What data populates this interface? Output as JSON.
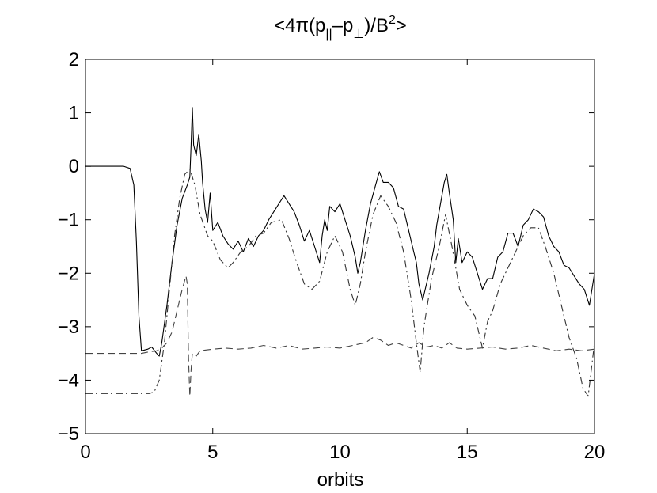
{
  "chart_data": {
    "type": "line",
    "title": "<4π(p||–p⊥)/B2>",
    "xlabel": "orbits",
    "ylabel": "",
    "xlim": [
      0,
      20
    ],
    "ylim": [
      -5,
      2
    ],
    "xticks": [
      "0",
      "5",
      "10",
      "15",
      "20"
    ],
    "yticks": [
      "2",
      "1",
      "0",
      "−1",
      "−2",
      "−3",
      "−4",
      "−5"
    ],
    "grid": false,
    "legend": "none",
    "series": [
      {
        "style": "solid",
        "color": "#000000",
        "points": [
          [
            0,
            0
          ],
          [
            1.5,
            0
          ],
          [
            1.75,
            -0.04
          ],
          [
            1.9,
            -0.35
          ],
          [
            2.0,
            -1.4
          ],
          [
            2.1,
            -2.8
          ],
          [
            2.2,
            -3.45
          ],
          [
            2.45,
            -3.42
          ],
          [
            2.6,
            -3.38
          ],
          [
            2.8,
            -3.5
          ],
          [
            2.9,
            -3.55
          ],
          [
            3.0,
            -3.3
          ],
          [
            3.2,
            -2.6
          ],
          [
            3.4,
            -1.8
          ],
          [
            3.6,
            -1.1
          ],
          [
            3.8,
            -0.6
          ],
          [
            4.0,
            -0.35
          ],
          [
            4.1,
            -0.2
          ],
          [
            4.15,
            0.4
          ],
          [
            4.2,
            1.1
          ],
          [
            4.25,
            0.4
          ],
          [
            4.35,
            0.2
          ],
          [
            4.45,
            0.6
          ],
          [
            4.55,
            0.1
          ],
          [
            4.6,
            -0.3
          ],
          [
            4.7,
            -0.8
          ],
          [
            4.8,
            -1.05
          ],
          [
            4.9,
            -0.5
          ],
          [
            5.0,
            -1.2
          ],
          [
            5.2,
            -1.05
          ],
          [
            5.4,
            -1.3
          ],
          [
            5.6,
            -1.45
          ],
          [
            5.8,
            -1.55
          ],
          [
            6.0,
            -1.4
          ],
          [
            6.2,
            -1.6
          ],
          [
            6.4,
            -1.35
          ],
          [
            6.6,
            -1.5
          ],
          [
            6.8,
            -1.3
          ],
          [
            7.0,
            -1.2
          ],
          [
            7.2,
            -1.0
          ],
          [
            7.4,
            -0.85
          ],
          [
            7.6,
            -0.7
          ],
          [
            7.8,
            -0.55
          ],
          [
            8.0,
            -0.7
          ],
          [
            8.2,
            -0.85
          ],
          [
            8.4,
            -1.1
          ],
          [
            8.6,
            -1.4
          ],
          [
            8.8,
            -1.2
          ],
          [
            9.0,
            -1.5
          ],
          [
            9.2,
            -1.8
          ],
          [
            9.3,
            -1.3
          ],
          [
            9.4,
            -1.0
          ],
          [
            9.5,
            -1.2
          ],
          [
            9.6,
            -0.75
          ],
          [
            9.8,
            -0.85
          ],
          [
            10.0,
            -0.7
          ],
          [
            10.2,
            -1.0
          ],
          [
            10.4,
            -1.3
          ],
          [
            10.6,
            -1.7
          ],
          [
            10.7,
            -2.0
          ],
          [
            10.8,
            -1.8
          ],
          [
            11.0,
            -1.2
          ],
          [
            11.2,
            -0.7
          ],
          [
            11.4,
            -0.35
          ],
          [
            11.55,
            -0.1
          ],
          [
            11.7,
            -0.3
          ],
          [
            11.9,
            -0.3
          ],
          [
            12.1,
            -0.4
          ],
          [
            12.3,
            -0.75
          ],
          [
            12.5,
            -0.8
          ],
          [
            12.7,
            -1.2
          ],
          [
            12.9,
            -1.6
          ],
          [
            13.0,
            -1.8
          ],
          [
            13.1,
            -2.2
          ],
          [
            13.25,
            -2.5
          ],
          [
            13.4,
            -2.2
          ],
          [
            13.5,
            -2.0
          ],
          [
            13.7,
            -1.5
          ],
          [
            13.8,
            -1.1
          ],
          [
            13.95,
            -0.7
          ],
          [
            14.1,
            -0.3
          ],
          [
            14.2,
            -0.15
          ],
          [
            14.3,
            -0.5
          ],
          [
            14.45,
            -1.0
          ],
          [
            14.55,
            -1.8
          ],
          [
            14.65,
            -1.35
          ],
          [
            14.8,
            -1.8
          ],
          [
            15.0,
            -1.6
          ],
          [
            15.2,
            -1.7
          ],
          [
            15.4,
            -2.0
          ],
          [
            15.6,
            -2.3
          ],
          [
            15.8,
            -2.1
          ],
          [
            16.0,
            -2.1
          ],
          [
            16.2,
            -1.7
          ],
          [
            16.4,
            -1.6
          ],
          [
            16.6,
            -1.25
          ],
          [
            16.8,
            -1.25
          ],
          [
            17.0,
            -1.5
          ],
          [
            17.2,
            -1.1
          ],
          [
            17.4,
            -1.0
          ],
          [
            17.6,
            -0.8
          ],
          [
            17.8,
            -0.85
          ],
          [
            18.0,
            -0.95
          ],
          [
            18.2,
            -1.3
          ],
          [
            18.4,
            -1.5
          ],
          [
            18.6,
            -1.6
          ],
          [
            18.8,
            -1.85
          ],
          [
            19.0,
            -1.9
          ],
          [
            19.2,
            -2.05
          ],
          [
            19.4,
            -2.2
          ],
          [
            19.6,
            -2.3
          ],
          [
            19.8,
            -2.6
          ],
          [
            20.0,
            -2.0
          ]
        ]
      },
      {
        "style": "dash-dot",
        "color": "#333333",
        "points": [
          [
            0,
            -4.25
          ],
          [
            2.5,
            -4.25
          ],
          [
            2.7,
            -4.22
          ],
          [
            2.9,
            -4.0
          ],
          [
            3.1,
            -3.3
          ],
          [
            3.3,
            -2.3
          ],
          [
            3.5,
            -1.3
          ],
          [
            3.7,
            -0.6
          ],
          [
            3.9,
            -0.15
          ],
          [
            4.1,
            -0.05
          ],
          [
            4.3,
            -0.35
          ],
          [
            4.5,
            -0.9
          ],
          [
            4.8,
            -1.3
          ],
          [
            5.0,
            -1.4
          ],
          [
            5.3,
            -1.75
          ],
          [
            5.6,
            -1.9
          ],
          [
            5.8,
            -1.8
          ],
          [
            6.1,
            -1.6
          ],
          [
            6.4,
            -1.5
          ],
          [
            6.7,
            -1.3
          ],
          [
            7.0,
            -1.25
          ],
          [
            7.3,
            -1.05
          ],
          [
            7.7,
            -1.0
          ],
          [
            8.0,
            -1.35
          ],
          [
            8.3,
            -1.8
          ],
          [
            8.6,
            -2.2
          ],
          [
            8.9,
            -2.3
          ],
          [
            9.2,
            -2.15
          ],
          [
            9.5,
            -1.6
          ],
          [
            9.8,
            -1.3
          ],
          [
            10.1,
            -1.6
          ],
          [
            10.4,
            -2.3
          ],
          [
            10.6,
            -2.6
          ],
          [
            10.8,
            -2.2
          ],
          [
            11.0,
            -1.6
          ],
          [
            11.3,
            -0.9
          ],
          [
            11.6,
            -0.55
          ],
          [
            11.9,
            -0.75
          ],
          [
            12.2,
            -1.05
          ],
          [
            12.5,
            -1.6
          ],
          [
            12.8,
            -2.5
          ],
          [
            13.0,
            -3.3
          ],
          [
            13.15,
            -3.85
          ],
          [
            13.3,
            -3.0
          ],
          [
            13.6,
            -2.1
          ],
          [
            13.9,
            -1.5
          ],
          [
            14.15,
            -0.9
          ],
          [
            14.4,
            -1.5
          ],
          [
            14.7,
            -2.3
          ],
          [
            15.0,
            -2.6
          ],
          [
            15.3,
            -2.8
          ],
          [
            15.6,
            -3.4
          ],
          [
            15.8,
            -2.9
          ],
          [
            16.0,
            -2.7
          ],
          [
            16.3,
            -2.2
          ],
          [
            16.6,
            -1.9
          ],
          [
            16.9,
            -1.6
          ],
          [
            17.2,
            -1.3
          ],
          [
            17.5,
            -1.15
          ],
          [
            17.8,
            -1.15
          ],
          [
            18.1,
            -1.55
          ],
          [
            18.4,
            -2.0
          ],
          [
            18.7,
            -2.6
          ],
          [
            19.0,
            -3.2
          ],
          [
            19.3,
            -3.6
          ],
          [
            19.55,
            -4.15
          ],
          [
            19.75,
            -4.3
          ],
          [
            19.9,
            -3.7
          ],
          [
            20.0,
            -3.3
          ]
        ]
      },
      {
        "style": "dashed",
        "color": "#444444",
        "points": [
          [
            0,
            -3.5
          ],
          [
            2.2,
            -3.5
          ],
          [
            2.5,
            -3.47
          ],
          [
            2.8,
            -3.45
          ],
          [
            3.0,
            -3.4
          ],
          [
            3.2,
            -3.3
          ],
          [
            3.4,
            -3.1
          ],
          [
            3.6,
            -2.7
          ],
          [
            3.8,
            -2.3
          ],
          [
            3.95,
            -2.05
          ],
          [
            4.0,
            -2.2
          ],
          [
            4.05,
            -3.6
          ],
          [
            4.1,
            -4.3
          ],
          [
            4.15,
            -3.8
          ],
          [
            4.2,
            -3.5
          ],
          [
            4.35,
            -3.55
          ],
          [
            4.5,
            -3.45
          ],
          [
            5.0,
            -3.42
          ],
          [
            5.5,
            -3.4
          ],
          [
            6.0,
            -3.42
          ],
          [
            6.5,
            -3.4
          ],
          [
            7.0,
            -3.35
          ],
          [
            7.5,
            -3.4
          ],
          [
            8.0,
            -3.35
          ],
          [
            8.5,
            -3.42
          ],
          [
            9.0,
            -3.4
          ],
          [
            9.5,
            -3.38
          ],
          [
            10.0,
            -3.4
          ],
          [
            10.5,
            -3.35
          ],
          [
            11.0,
            -3.3
          ],
          [
            11.3,
            -3.2
          ],
          [
            11.6,
            -3.25
          ],
          [
            11.9,
            -3.35
          ],
          [
            12.2,
            -3.3
          ],
          [
            12.5,
            -3.35
          ],
          [
            12.8,
            -3.4
          ],
          [
            13.1,
            -3.3
          ],
          [
            13.4,
            -3.38
          ],
          [
            13.7,
            -3.35
          ],
          [
            14.0,
            -3.4
          ],
          [
            14.3,
            -3.3
          ],
          [
            14.6,
            -3.4
          ],
          [
            15.0,
            -3.42
          ],
          [
            15.5,
            -3.4
          ],
          [
            16.0,
            -3.38
          ],
          [
            16.5,
            -3.42
          ],
          [
            17.0,
            -3.4
          ],
          [
            17.5,
            -3.35
          ],
          [
            18.0,
            -3.4
          ],
          [
            18.5,
            -3.45
          ],
          [
            19.0,
            -3.42
          ],
          [
            19.5,
            -3.45
          ],
          [
            20.0,
            -3.42
          ]
        ]
      }
    ]
  }
}
